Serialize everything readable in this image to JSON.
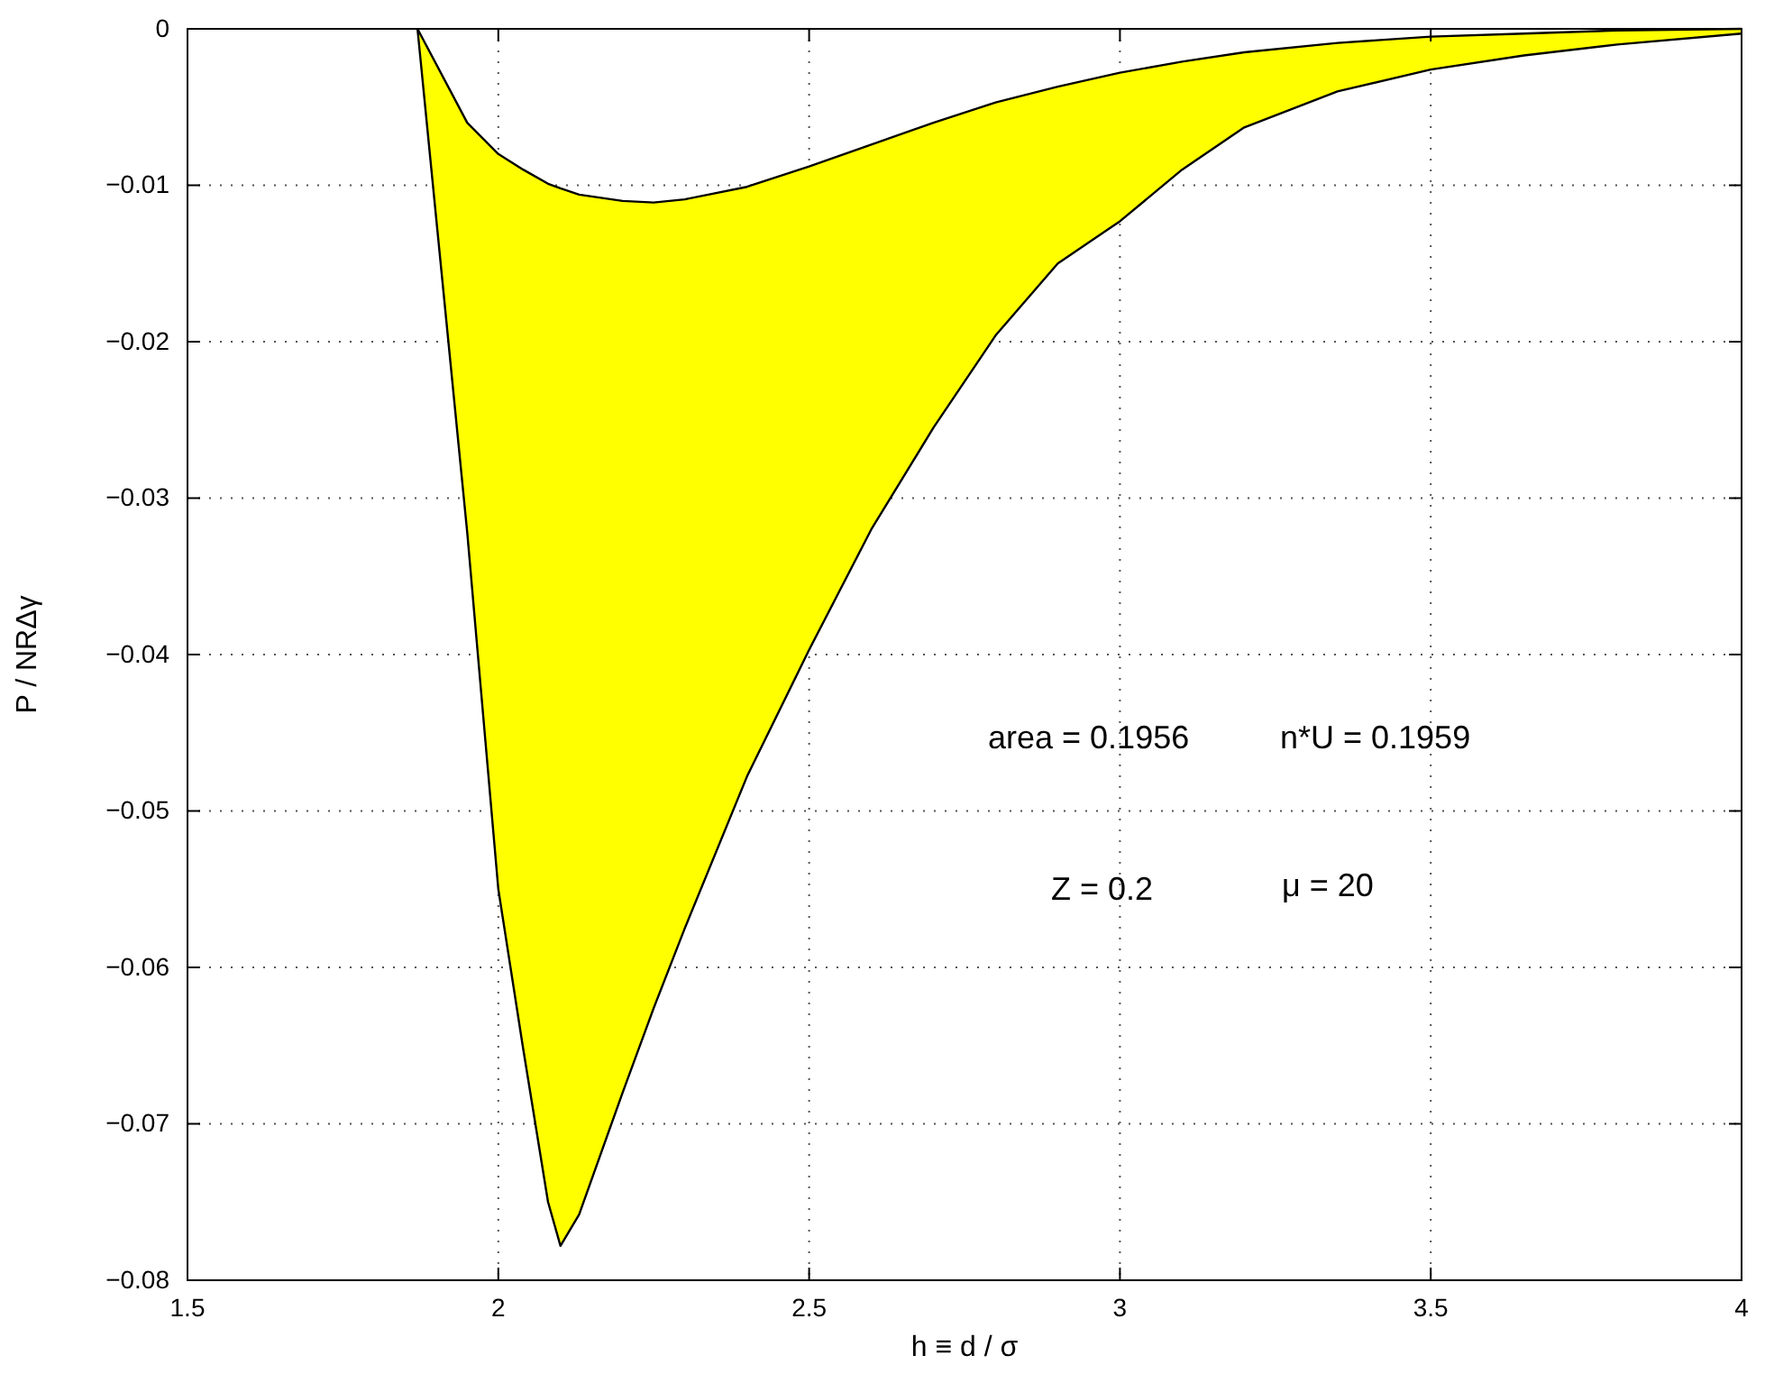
{
  "chart_data": {
    "type": "line",
    "xlabel": "h ≡ d / σ",
    "ylabel": "P / NRΔγ",
    "annotations": [
      "area = 0.1956",
      "n*U = 0.1959",
      "Z = 0.2",
      "μ = 20"
    ],
    "series": [
      {
        "color": "#000000",
        "x": [
          1.87,
          1.95,
          2.0,
          2.04,
          2.08,
          2.1,
          2.13,
          2.2,
          2.25,
          2.3,
          2.4,
          2.5,
          2.6,
          2.7,
          2.8,
          2.9,
          3.0,
          3.1,
          3.2,
          3.35,
          3.5,
          3.65,
          3.8,
          4.0
        ],
        "values": [
          0,
          -0.006,
          -0.008,
          -0.009,
          -0.0099,
          -0.0102,
          -0.0106,
          -0.011,
          -0.0111,
          -0.0109,
          -0.0101,
          -0.0088,
          -0.0074,
          -0.006,
          -0.0047,
          -0.0037,
          -0.0028,
          -0.0021,
          -0.0015,
          -0.0009,
          -0.0005,
          -0.0003,
          -0.0001,
          0
        ],
        "lower": [
          0,
          -0.0322,
          -0.055,
          -0.0652,
          -0.075,
          -0.0778,
          -0.0758,
          -0.068,
          -0.0626,
          -0.0575,
          -0.0478,
          -0.0397,
          -0.032,
          -0.0255,
          -0.0196,
          -0.015,
          -0.0123,
          -0.009,
          -0.0063,
          -0.004,
          -0.0026,
          -0.0017,
          -0.001,
          -0.0003
        ],
        "upper": [
          0,
          -0.006,
          -0.008,
          -0.009,
          -0.0099,
          -0.0102,
          -0.0106,
          -0.011,
          -0.0111,
          -0.0109,
          -0.0101,
          -0.0088,
          -0.0074,
          -0.006,
          -0.0047,
          -0.0037,
          -0.0028,
          -0.0021,
          -0.0015,
          -0.0009,
          -0.0005,
          -0.0003,
          -0.0001,
          0
        ]
      },
      {
        "color": "#000000",
        "x": [
          1.87,
          1.95,
          2.0,
          2.04,
          2.08,
          2.1,
          2.13,
          2.2,
          2.25,
          2.3,
          2.4,
          2.5,
          2.6,
          2.7,
          2.8,
          2.9,
          3.0,
          3.1,
          3.2,
          3.35,
          3.5,
          3.65,
          3.8,
          4.0
        ],
        "values": [
          0,
          -0.0322,
          -0.055,
          -0.0652,
          -0.075,
          -0.0778,
          -0.0758,
          -0.068,
          -0.0626,
          -0.0575,
          -0.0478,
          -0.0397,
          -0.032,
          -0.0255,
          -0.0196,
          -0.015,
          -0.0123,
          -0.009,
          -0.0063,
          -0.004,
          -0.0026,
          -0.0017,
          -0.001,
          -0.0003
        ]
      }
    ],
    "xlim": [
      1.5,
      4
    ],
    "xticks": [
      1.5,
      2,
      2.5,
      3,
      3.5,
      4
    ],
    "ylim": [
      -0.08,
      0
    ],
    "yticks": [
      {
        "value": -0.08,
        "label": "−0.08"
      },
      {
        "value": -0.07,
        "label": "−0.07"
      },
      {
        "value": -0.06,
        "label": "−0.06"
      },
      {
        "value": -0.05,
        "label": "−0.05"
      },
      {
        "value": -0.04,
        "label": "−0.04"
      },
      {
        "value": -0.03,
        "label": "−0.03"
      },
      {
        "value": -0.02,
        "label": "−0.02"
      },
      {
        "value": -0.01,
        "label": "−0.01"
      },
      0
    ],
    "grid": true,
    "line_style": "solid"
  }
}
